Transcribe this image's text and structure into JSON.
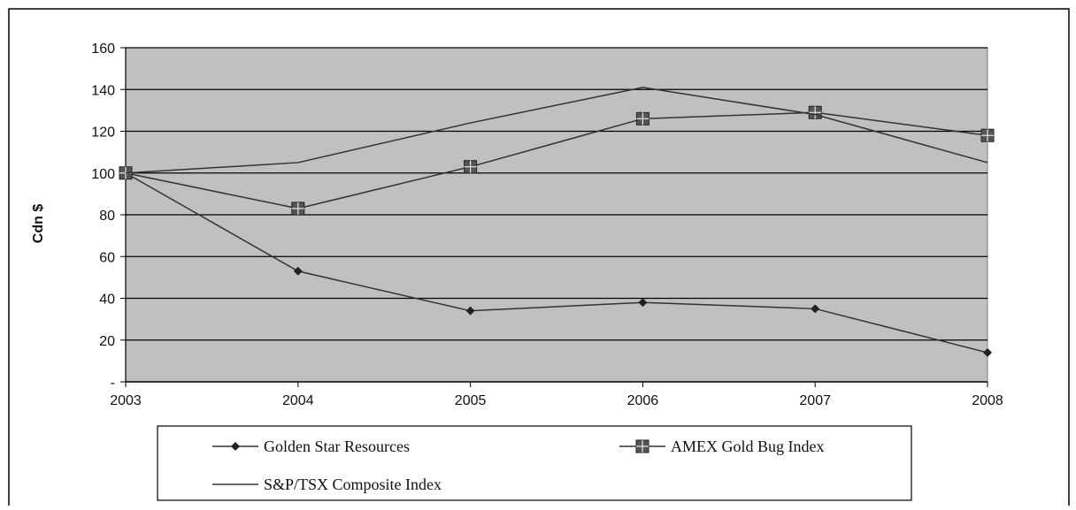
{
  "chart_data": {
    "type": "line",
    "title": "",
    "xlabel": "",
    "ylabel": "Cdn $",
    "categories": [
      "2003",
      "2004",
      "2005",
      "2006",
      "2007",
      "2008"
    ],
    "ylim": [
      0,
      160
    ],
    "y_ticks": [
      {
        "value": 0,
        "label": "-"
      },
      {
        "value": 20,
        "label": "20"
      },
      {
        "value": 40,
        "label": "40"
      },
      {
        "value": 60,
        "label": "60"
      },
      {
        "value": 80,
        "label": "80"
      },
      {
        "value": 100,
        "label": "100"
      },
      {
        "value": 120,
        "label": "120"
      },
      {
        "value": 140,
        "label": "140"
      },
      {
        "value": 160,
        "label": "160"
      }
    ],
    "grid": true,
    "legend_position": "bottom",
    "series": [
      {
        "name": "Golden Star Resources",
        "marker": "diamond",
        "values": [
          100,
          53,
          34,
          38,
          35,
          14
        ]
      },
      {
        "name": "AMEX Gold Bug Index",
        "marker": "square-plus",
        "values": [
          100,
          83,
          103,
          126,
          129,
          118
        ]
      },
      {
        "name": "S&P/TSX Composite Index",
        "marker": "none",
        "values": [
          100,
          105,
          124,
          141,
          128,
          105
        ]
      }
    ]
  },
  "colors": {
    "plot_background": "#c0c0c0",
    "grid": "#000000",
    "line": "#333333",
    "marker": "#222222"
  }
}
